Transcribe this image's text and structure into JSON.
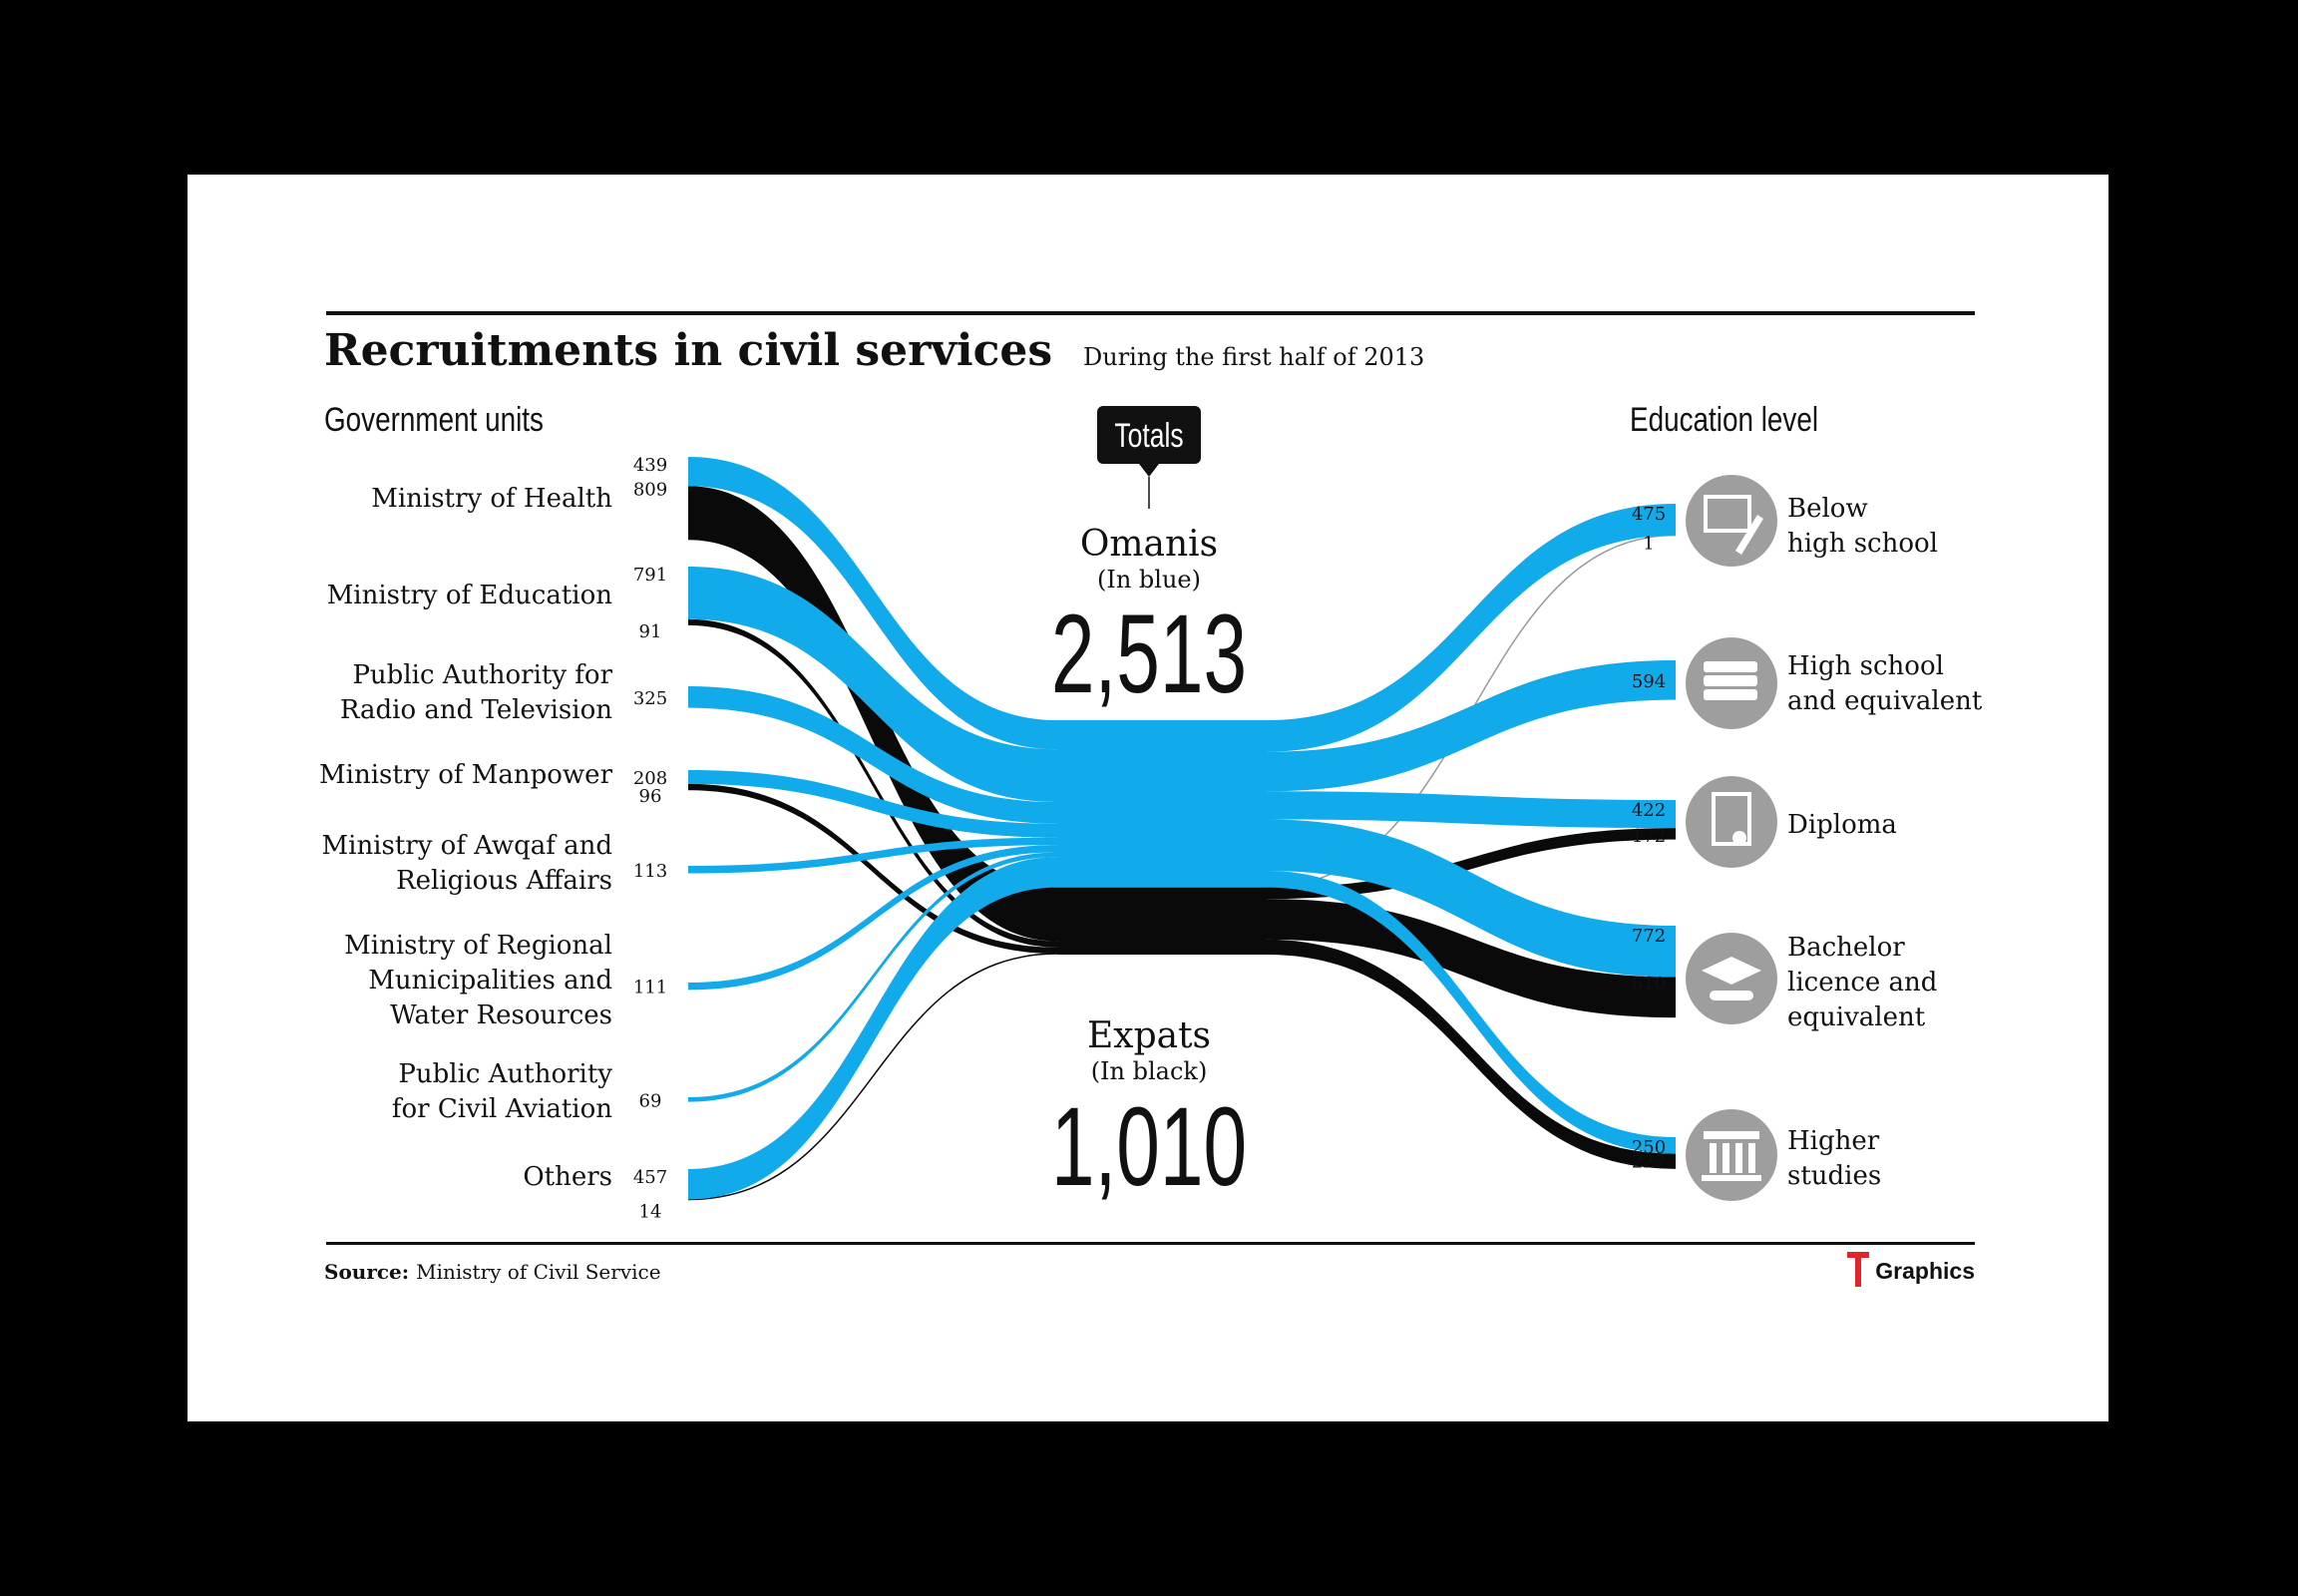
{
  "title": "Recruitments in civil services",
  "subtitle": "During the first half of 2013",
  "left_header": "Government units",
  "right_header": "Education level",
  "totals_label": "Totals",
  "omanis": {
    "label": "Omanis",
    "note": "(In blue)",
    "total": "2,513"
  },
  "expats": {
    "label": "Expats",
    "note": "(In black)",
    "total": "1,010"
  },
  "source_label": "Source:",
  "source_text": "Ministry of Civil Service",
  "brand": "Graphics",
  "colors": {
    "omanis": "#11aaea",
    "expats": "#0a0a0a",
    "icon_bg": "#9e9e9e",
    "text": "#111111"
  },
  "units": [
    {
      "label": "Ministry of Health",
      "omanis": 439,
      "expats": 809
    },
    {
      "label": "Ministry of Education",
      "omanis": 791,
      "expats": 91
    },
    {
      "label": "Public Authority for Radio and Television",
      "omanis": 325,
      "expats": null
    },
    {
      "label": "Ministry of Manpower",
      "omanis": 208,
      "expats": 96
    },
    {
      "label": "Ministry of Awqaf and Religious Affairs",
      "omanis": 113,
      "expats": null
    },
    {
      "label": "Ministry of Regional Municipalities and Water Resources",
      "omanis": 111,
      "expats": null
    },
    {
      "label": "Public Authority for Civil Aviation",
      "omanis": 69,
      "expats": null
    },
    {
      "label": "Others",
      "omanis": 457,
      "expats": 14
    }
  ],
  "education": [
    {
      "label": "Below high school",
      "icon": "blackboard-pencil-icon",
      "omanis": 475,
      "expats": 1
    },
    {
      "label": "High school and equivalent",
      "icon": "books-icon",
      "omanis": 594,
      "expats": null
    },
    {
      "label": "Diploma",
      "icon": "certificate-icon",
      "omanis": 422,
      "expats": 172
    },
    {
      "label": "Bachelor licence and equivalent",
      "icon": "graduation-cap-icon",
      "omanis": 772,
      "expats": 610
    },
    {
      "label": "Higher studies",
      "icon": "column-building-icon",
      "omanis": 250,
      "expats": 227
    }
  ]
}
